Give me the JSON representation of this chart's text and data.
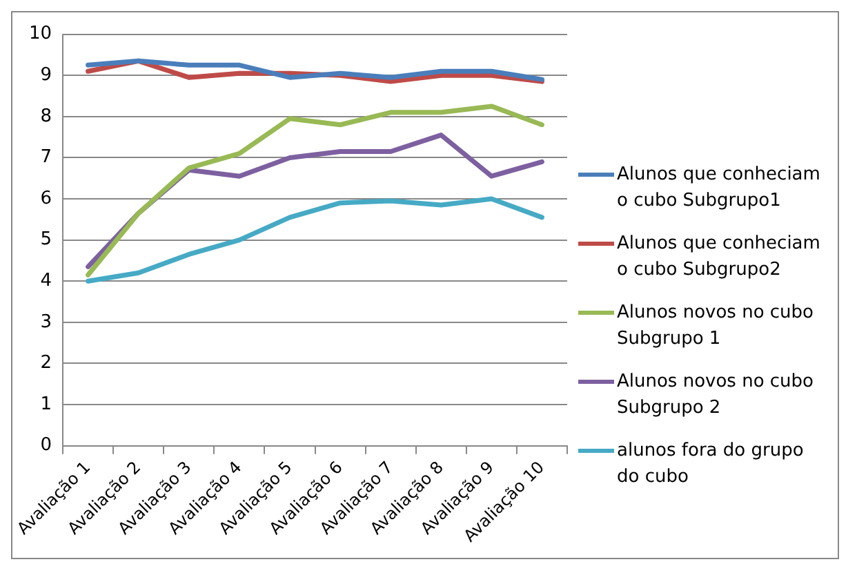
{
  "chart_data": {
    "type": "line",
    "categories": [
      "Avaliação 1",
      "Avaliação 2",
      "Avaliação 3",
      "Avaliação 4",
      "Avaliação 5",
      "Avaliação 6",
      "Avaliação 7",
      "Avaliação 8",
      "Avaliação 9",
      "Avaliação 10"
    ],
    "series": [
      {
        "name": "Alunos que conheciam o cubo Subgrupo1",
        "color": "#4a7ebb",
        "values": [
          9.25,
          9.35,
          9.25,
          9.25,
          8.95,
          9.05,
          8.95,
          9.1,
          9.1,
          8.9
        ]
      },
      {
        "name": "Alunos que conheciam o cubo Subgrupo2",
        "color": "#be4b48",
        "values": [
          9.1,
          9.35,
          8.95,
          9.05,
          9.05,
          9.0,
          8.85,
          9.0,
          9.0,
          8.85
        ]
      },
      {
        "name": "Alunos novos no cubo Subgrupo 1",
        "color": "#98b954",
        "values": [
          4.15,
          5.65,
          6.75,
          7.1,
          7.95,
          7.8,
          8.1,
          8.1,
          8.25,
          7.8
        ]
      },
      {
        "name": "Alunos novos no cubo Subgrupo 2",
        "color": "#7d60a0",
        "values": [
          4.35,
          5.65,
          6.7,
          6.55,
          7.0,
          7.15,
          7.15,
          7.55,
          6.55,
          6.9
        ]
      },
      {
        "name": "alunos fora do grupo do cubo",
        "color": "#46aac5",
        "values": [
          4.0,
          4.2,
          4.65,
          5.0,
          5.55,
          5.9,
          5.95,
          5.85,
          6.0,
          5.55
        ]
      }
    ],
    "ylim": [
      0,
      10
    ],
    "yticks": [
      0,
      1,
      2,
      3,
      4,
      5,
      6,
      7,
      8,
      9,
      10
    ],
    "grid": "y",
    "legend": "right",
    "marker": "none",
    "line_style": "solid"
  }
}
